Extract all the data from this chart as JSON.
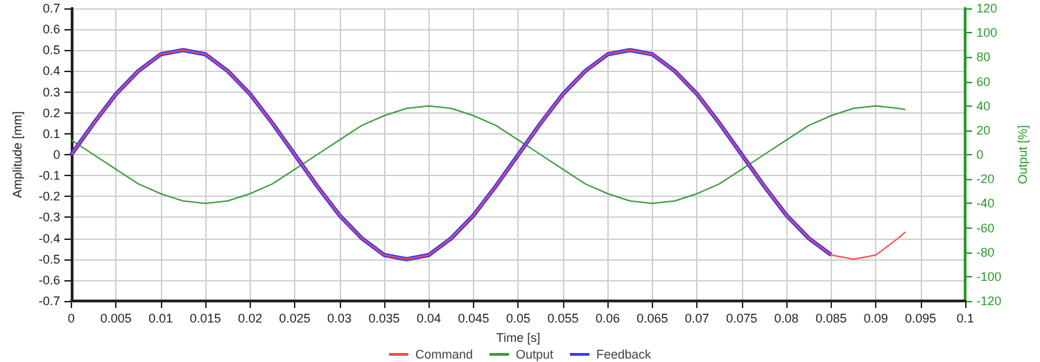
{
  "chart_data": {
    "type": "line",
    "xlabel": "Time [s]",
    "ylabel": "Amplitude [mm]",
    "y2label": "Output [%]",
    "xlim": [
      0,
      0.1
    ],
    "xticks": [
      0,
      0.005,
      0.01,
      0.015,
      0.02,
      0.025,
      0.03,
      0.035,
      0.04,
      0.045,
      0.05,
      0.055,
      0.06,
      0.065,
      0.07,
      0.075,
      0.08,
      0.085,
      0.09,
      0.095,
      0.1
    ],
    "ylim": [
      -0.7,
      0.7
    ],
    "yticks": [
      -0.7,
      -0.6,
      -0.5,
      -0.4,
      -0.3,
      -0.2,
      -0.1,
      0,
      0.1,
      0.2,
      0.3,
      0.4,
      0.5,
      0.6,
      0.7
    ],
    "y2lim": [
      -120,
      120
    ],
    "y2ticks": [
      -120,
      -100,
      -80,
      -60,
      -40,
      -20,
      0,
      20,
      40,
      60,
      80,
      100,
      120
    ],
    "grid": true,
    "legend": "bottom",
    "marker": "none",
    "line_style": "solid",
    "x": [
      0,
      0.0025,
      0.005,
      0.0075,
      0.01,
      0.0125,
      0.015,
      0.0175,
      0.02,
      0.0225,
      0.025,
      0.0275,
      0.03,
      0.0325,
      0.035,
      0.0375,
      0.04,
      0.0425,
      0.045,
      0.0475,
      0.05,
      0.0525,
      0.055,
      0.0575,
      0.06,
      0.0625,
      0.065,
      0.0675,
      0.07,
      0.0725,
      0.075,
      0.0775,
      0.08,
      0.0825,
      0.085,
      0.0875,
      0.09,
      0.0925,
      0.0933
    ],
    "series": [
      {
        "name": "Command",
        "color": "#ff4a4a",
        "values": [
          0,
          0.15,
          0.29,
          0.4,
          0.48,
          0.5,
          0.48,
          0.4,
          0.29,
          0.15,
          0,
          -0.15,
          -0.29,
          -0.4,
          -0.48,
          -0.5,
          -0.48,
          -0.4,
          -0.29,
          -0.15,
          0,
          0.15,
          0.29,
          0.4,
          0.48,
          0.5,
          0.48,
          0.4,
          0.29,
          0.15,
          0,
          -0.15,
          -0.29,
          -0.4,
          -0.48,
          -0.5,
          -0.48,
          -0.4,
          -0.37
        ]
      },
      {
        "name": "Output",
        "color": "#3c9c3c",
        "axis": "y2",
        "values": [
          12,
          0,
          -12,
          -24,
          -32,
          -38,
          -40,
          -38,
          -32,
          -24,
          -12,
          0,
          12,
          24,
          32,
          38,
          40,
          38,
          32,
          24,
          12,
          0,
          -12,
          -24,
          -32,
          -38,
          -40,
          -38,
          -32,
          -24,
          -12,
          0,
          12,
          24,
          32,
          38,
          40,
          38,
          37
        ]
      },
      {
        "name": "Feedback",
        "color": "#3a3aff",
        "values": [
          0,
          0.15,
          0.29,
          0.4,
          0.48,
          0.5,
          0.48,
          0.4,
          0.29,
          0.15,
          0,
          -0.15,
          -0.29,
          -0.4,
          -0.48,
          -0.5,
          -0.48,
          -0.4,
          -0.29,
          -0.15,
          0,
          0.15,
          0.29,
          0.4,
          0.48,
          0.5,
          0.48,
          0.4,
          0.29,
          0.15,
          0,
          -0.15,
          -0.29,
          -0.4,
          -0.48,
          null,
          null,
          null,
          null
        ]
      }
    ]
  }
}
